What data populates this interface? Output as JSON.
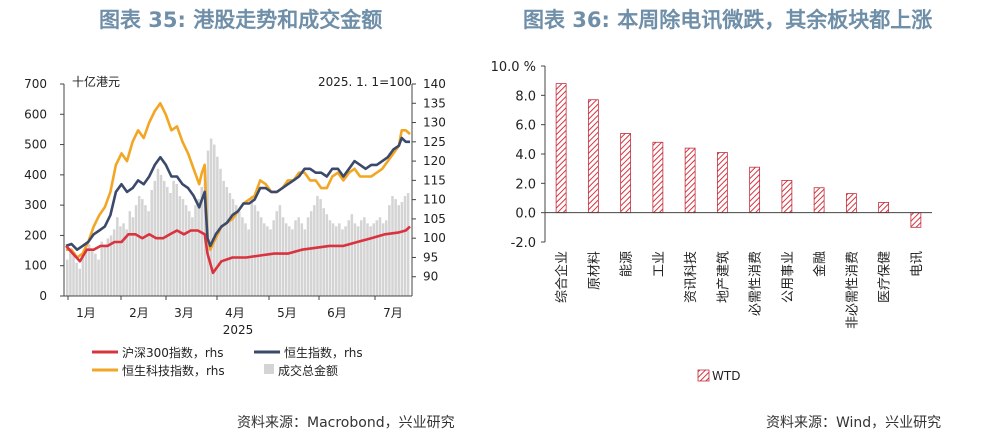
{
  "titles": {
    "left": "图表 35: 港股走势和成交金额",
    "right": "图表 36: 本周除电讯微跌，其余板块都上涨"
  },
  "sources": {
    "left": "资料来源：Macrobond，兴业研究",
    "right": "资料来源：Wind，兴业研究"
  },
  "colors": {
    "title": "#6f8fa9",
    "hs300": "#d9333f",
    "hsi": "#3b4a6b",
    "hstech": "#f2a624",
    "volume": "#d4d4d4",
    "bar_stroke": "#c0303f"
  },
  "chart_data": [
    {
      "type": "line",
      "unit_label_left": "十亿港元",
      "unit_label_right": "2025. 1. 1=100",
      "xlabel": "2025",
      "x_tick_labels": [
        "1月",
        "2月",
        "3月",
        "4月",
        "5月",
        "6月",
        "7月"
      ],
      "y_left": {
        "min": 0,
        "max": 700,
        "ticks": [
          0,
          100,
          200,
          300,
          400,
          500,
          600,
          700
        ]
      },
      "y_right": {
        "min": 85,
        "max": 140,
        "ticks": [
          90,
          95,
          100,
          105,
          110,
          115,
          120,
          125,
          130,
          135,
          140
        ]
      },
      "legend": [
        "沪深300指数，rhs",
        "恒生指数，rhs",
        "恒生科技指数，rhs",
        "成交总金额"
      ],
      "series": [
        {
          "name": "沪深300指数，rhs",
          "axis": "right",
          "points": [
            [
              0,
              98
            ],
            [
              5,
              96
            ],
            [
              10,
              94
            ],
            [
              15,
              97
            ],
            [
              20,
              97
            ],
            [
              25,
              98
            ],
            [
              30,
              98
            ],
            [
              35,
              99
            ],
            [
              40,
              99
            ],
            [
              45,
              101
            ],
            [
              50,
              101
            ],
            [
              55,
              100
            ],
            [
              60,
              101
            ],
            [
              65,
              100
            ],
            [
              70,
              100
            ],
            [
              75,
              101
            ],
            [
              80,
              102
            ],
            [
              85,
              101
            ],
            [
              90,
              102
            ],
            [
              95,
              102
            ],
            [
              100,
              101
            ],
            [
              102,
              96
            ],
            [
              106,
              91
            ],
            [
              112,
              94
            ],
            [
              120,
              95
            ],
            [
              130,
              95
            ],
            [
              140,
              95.5
            ],
            [
              150,
              96
            ],
            [
              160,
              96
            ],
            [
              170,
              97
            ],
            [
              180,
              97.5
            ],
            [
              190,
              98
            ],
            [
              200,
              98
            ],
            [
              210,
              99
            ],
            [
              220,
              100
            ],
            [
              230,
              101
            ],
            [
              240,
              101.5
            ],
            [
              245,
              102
            ],
            [
              248,
              103
            ]
          ]
        },
        {
          "name": "恒生指数，rhs",
          "axis": "right",
          "points": [
            [
              0,
              98
            ],
            [
              4,
              98.5
            ],
            [
              8,
              97
            ],
            [
              12,
              98
            ],
            [
              16,
              99
            ],
            [
              20,
              101
            ],
            [
              24,
              102
            ],
            [
              28,
              103
            ],
            [
              32,
              106
            ],
            [
              36,
              112
            ],
            [
              40,
              114
            ],
            [
              44,
              112
            ],
            [
              48,
              113
            ],
            [
              52,
              115
            ],
            [
              56,
              114
            ],
            [
              60,
              116
            ],
            [
              64,
              119
            ],
            [
              68,
              121
            ],
            [
              72,
              119
            ],
            [
              76,
              116
            ],
            [
              80,
              116
            ],
            [
              84,
              114
            ],
            [
              88,
              113
            ],
            [
              92,
              111
            ],
            [
              96,
              108
            ],
            [
              98,
              110
            ],
            [
              100,
              112
            ],
            [
              102,
              100
            ],
            [
              104,
              98
            ],
            [
              108,
              101
            ],
            [
              112,
              103
            ],
            [
              116,
              104
            ],
            [
              120,
              106
            ],
            [
              124,
              107
            ],
            [
              128,
              109
            ],
            [
              132,
              109
            ],
            [
              136,
              110
            ],
            [
              140,
              113
            ],
            [
              144,
              113
            ],
            [
              148,
              112
            ],
            [
              152,
              112
            ],
            [
              156,
              113
            ],
            [
              160,
              114
            ],
            [
              164,
              115
            ],
            [
              168,
              116
            ],
            [
              172,
              118
            ],
            [
              176,
              118
            ],
            [
              180,
              117
            ],
            [
              184,
              117
            ],
            [
              188,
              116
            ],
            [
              192,
              118
            ],
            [
              196,
              118
            ],
            [
              200,
              116
            ],
            [
              204,
              118
            ],
            [
              208,
              120
            ],
            [
              212,
              119
            ],
            [
              216,
              118
            ],
            [
              220,
              119
            ],
            [
              224,
              119
            ],
            [
              228,
              120
            ],
            [
              232,
              121
            ],
            [
              236,
              123
            ],
            [
              240,
              124
            ],
            [
              242,
              126
            ],
            [
              245,
              125
            ],
            [
              248,
              125
            ]
          ]
        },
        {
          "name": "恒生科技指数，rhs",
          "axis": "right",
          "points": [
            [
              0,
              97
            ],
            [
              4,
              97
            ],
            [
              8,
              95
            ],
            [
              12,
              96
            ],
            [
              16,
              99
            ],
            [
              20,
              103
            ],
            [
              24,
              106
            ],
            [
              28,
              108
            ],
            [
              32,
              112
            ],
            [
              36,
              119
            ],
            [
              40,
              122
            ],
            [
              44,
              120
            ],
            [
              48,
              125
            ],
            [
              52,
              128
            ],
            [
              56,
              126
            ],
            [
              60,
              130
            ],
            [
              64,
              133
            ],
            [
              68,
              135
            ],
            [
              72,
              132
            ],
            [
              76,
              128
            ],
            [
              80,
              129
            ],
            [
              84,
              125
            ],
            [
              88,
              122
            ],
            [
              92,
              118
            ],
            [
              96,
              114
            ],
            [
              98,
              117
            ],
            [
              100,
              119
            ],
            [
              102,
              100
            ],
            [
              104,
              97
            ],
            [
              108,
              100
            ],
            [
              112,
              103
            ],
            [
              116,
              104
            ],
            [
              120,
              105
            ],
            [
              124,
              107
            ],
            [
              128,
              109
            ],
            [
              132,
              110
            ],
            [
              136,
              111
            ],
            [
              140,
              115
            ],
            [
              144,
              114
            ],
            [
              148,
              112
            ],
            [
              152,
              112
            ],
            [
              156,
              113
            ],
            [
              160,
              115
            ],
            [
              164,
              115
            ],
            [
              168,
              117
            ],
            [
              172,
              117
            ],
            [
              176,
              115
            ],
            [
              180,
              115
            ],
            [
              184,
              113
            ],
            [
              188,
              113
            ],
            [
              192,
              116
            ],
            [
              196,
              117
            ],
            [
              200,
              115
            ],
            [
              204,
              117
            ],
            [
              208,
              118
            ],
            [
              212,
              116
            ],
            [
              216,
              116
            ],
            [
              220,
              116
            ],
            [
              224,
              117
            ],
            [
              228,
              118
            ],
            [
              232,
              120
            ],
            [
              236,
              122
            ],
            [
              240,
              124
            ],
            [
              242,
              128
            ],
            [
              245,
              128
            ],
            [
              248,
              127
            ]
          ]
        },
        {
          "name": "成交总金额",
          "axis": "left",
          "type": "bar",
          "values": [
            120,
            150,
            140,
            110,
            90,
            130,
            160,
            170,
            150,
            140,
            120,
            180,
            170,
            190,
            200,
            220,
            260,
            230,
            240,
            220,
            280,
            260,
            300,
            330,
            320,
            300,
            280,
            350,
            380,
            420,
            400,
            380,
            360,
            340,
            380,
            370,
            330,
            320,
            300,
            280,
            260,
            300,
            320,
            360,
            420,
            480,
            520,
            500,
            460,
            420,
            380,
            360,
            340,
            320,
            300,
            280,
            260,
            240,
            220,
            330,
            300,
            280,
            260,
            240,
            230,
            220,
            250,
            280,
            300,
            260,
            240,
            230,
            220,
            250,
            260,
            240,
            220,
            260,
            280,
            300,
            330,
            320,
            290,
            270,
            250,
            240,
            230,
            240,
            220,
            230,
            250,
            270,
            240,
            230,
            250,
            260,
            240,
            230,
            240,
            250,
            260,
            240,
            250,
            300,
            330,
            320,
            300,
            310,
            330,
            340
          ]
        }
      ]
    },
    {
      "type": "bar",
      "legend": "WTD",
      "y_tick_labels": [
        "-2.0",
        "0.0",
        "2.0",
        "4.0",
        "6.0",
        "8.0",
        "10.0 %"
      ],
      "ylim": [
        -2,
        10
      ],
      "categories": [
        "综合企业",
        "原材料",
        "能源",
        "工业",
        "资讯科技",
        "地产建筑",
        "必需性消费",
        "公用事业",
        "金融",
        "非必需性消费",
        "医疗保健",
        "电讯"
      ],
      "values": [
        8.8,
        7.7,
        5.4,
        4.8,
        4.4,
        4.1,
        3.1,
        2.2,
        1.7,
        1.3,
        0.7,
        -1.0
      ]
    }
  ]
}
